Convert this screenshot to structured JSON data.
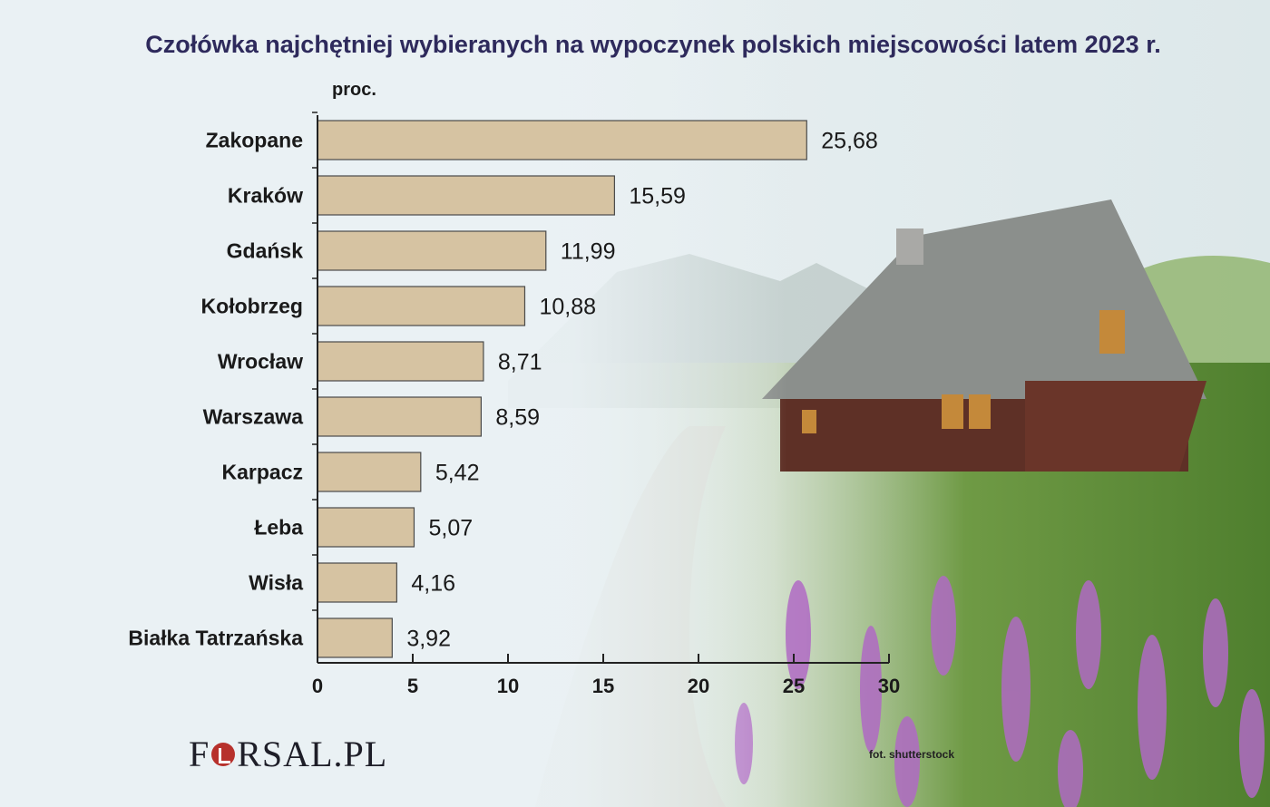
{
  "title": "Czołówka najchętniej wybieranych na wypoczynek polskich miejscowości latem 2023 r.",
  "credit": "fot. shutterstock",
  "logo": {
    "part1": "F",
    "part2": "RSAL.PL"
  },
  "colors": {
    "bar_fill": "#d6c3a2",
    "bar_stroke": "#4a4a4a",
    "title": "#2e2a5c",
    "logo_accent": "#b7312c"
  },
  "chart_data": {
    "type": "bar",
    "orientation": "horizontal",
    "ylabel": "proc.",
    "categories": [
      "Zakopane",
      "Kraków",
      "Gdańsk",
      "Kołobrzeg",
      "Wrocław",
      "Warszawa",
      "Karpacz",
      "Łeba",
      "Wisła",
      "Białka Tatrzańska"
    ],
    "values": [
      25.68,
      15.59,
      11.99,
      10.88,
      8.71,
      8.59,
      5.42,
      5.07,
      4.16,
      3.92
    ],
    "value_labels": [
      "25,68",
      "15,59",
      "11,99",
      "10,88",
      "8,71",
      "8,59",
      "5,42",
      "5,07",
      "4,16",
      "3,92"
    ],
    "xlim": [
      0,
      30
    ],
    "xticks": [
      0,
      5,
      10,
      15,
      20,
      25,
      30
    ],
    "grid": false
  }
}
